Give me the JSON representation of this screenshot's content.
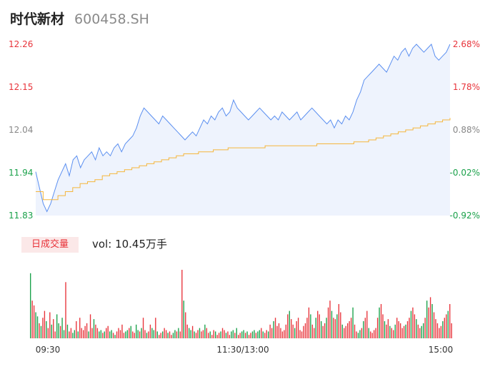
{
  "header": {
    "name": "时代新材",
    "code": "600458.SH"
  },
  "volume": {
    "badge": "日成交量",
    "prefix": "vol:",
    "value": "10.45万手"
  },
  "colors": {
    "up": "#e8333a",
    "down": "#1aa14a",
    "neutral": "#888888",
    "price_line": "#5b8ff0",
    "avg_line": "#f5b63c",
    "area_fill": "#eef3fd"
  },
  "chart_data": [
    {
      "type": "line",
      "title": "",
      "xlabel": "",
      "ylabel": "",
      "ylim": [
        11.83,
        12.26
      ],
      "y_ticks": [
        "12.26",
        "12.15",
        "12.04",
        "11.94",
        "11.83"
      ],
      "y_ticks_right": [
        "2.68%",
        "1.78%",
        "0.88%",
        "-0.02%",
        "-0.92%"
      ],
      "x_ticks": [
        "09:30",
        "11:30/13:00",
        "15:00"
      ],
      "grid": false,
      "series": [
        {
          "values": [
            11.94,
            11.9,
            11.86,
            11.84,
            11.86,
            11.89,
            11.92,
            11.94,
            11.96,
            11.93,
            11.97,
            11.98,
            11.95,
            11.97,
            11.98,
            11.99,
            11.97,
            12.0,
            11.98,
            11.99,
            11.98,
            12.0,
            12.01,
            11.99,
            12.01,
            12.02,
            12.03,
            12.05,
            12.08,
            12.1,
            12.09,
            12.08,
            12.07,
            12.06,
            12.08,
            12.07,
            12.06,
            12.05,
            12.04,
            12.03,
            12.02,
            12.03,
            12.04,
            12.03,
            12.05,
            12.07,
            12.06,
            12.08,
            12.07,
            12.09,
            12.1,
            12.08,
            12.09,
            12.12,
            12.1,
            12.09,
            12.08,
            12.07,
            12.08,
            12.09,
            12.1,
            12.09,
            12.08,
            12.07,
            12.08,
            12.07,
            12.09,
            12.08,
            12.07,
            12.08,
            12.09,
            12.07,
            12.08,
            12.09,
            12.1,
            12.09,
            12.08,
            12.07,
            12.06,
            12.07,
            12.05,
            12.07,
            12.06,
            12.08,
            12.07,
            12.09,
            12.12,
            12.14,
            12.17,
            12.18,
            12.19,
            12.2,
            12.21,
            12.2,
            12.19,
            12.21,
            12.23,
            12.22,
            12.24,
            12.25,
            12.23,
            12.25,
            12.26,
            12.25,
            12.24,
            12.25,
            12.26,
            12.23,
            12.22,
            12.23,
            12.24,
            12.26
          ],
          "color": "#5b8ff0"
        },
        {
          "values": [
            11.89,
            11.87,
            11.87,
            11.88,
            11.89,
            11.9,
            11.91,
            11.915,
            11.92,
            11.93,
            11.935,
            11.94,
            11.945,
            11.95,
            11.955,
            11.96,
            11.965,
            11.97,
            11.975,
            11.98,
            11.985,
            11.985,
            11.99,
            11.99,
            11.995,
            11.995,
            12.0,
            12.0,
            12.0,
            12.0,
            12.0,
            12.005,
            12.005,
            12.005,
            12.005,
            12.005,
            12.005,
            12.005,
            12.01,
            12.01,
            12.01,
            12.01,
            12.01,
            12.015,
            12.015,
            12.02,
            12.025,
            12.03,
            12.035,
            12.04,
            12.045,
            12.05,
            12.055,
            12.06,
            12.065,
            12.07,
            12.075
          ],
          "color": "#f5b63c"
        }
      ]
    },
    {
      "type": "bar",
      "title": "",
      "x_ticks": [
        "09:30",
        "11:30/13:00",
        "15:00"
      ],
      "series": [
        {
          "values": [
            95,
            55,
            48,
            38,
            32,
            22,
            18,
            30,
            40,
            25,
            15,
            38,
            20,
            28,
            10,
            35,
            22,
            18,
            30,
            12,
            82,
            20,
            10,
            15,
            8,
            12,
            25,
            10,
            30,
            15,
            12,
            18,
            22,
            10,
            35,
            15,
            28,
            20,
            15,
            10,
            12,
            8,
            10,
            15,
            18,
            10,
            12,
            8,
            5,
            10,
            15,
            12,
            20,
            8,
            10,
            12,
            15,
            18,
            10,
            8,
            20,
            12,
            10,
            15,
            30,
            12,
            8,
            10,
            20,
            15,
            12,
            30,
            10,
            5,
            8,
            10,
            15,
            12,
            8,
            10,
            5,
            8,
            12,
            10,
            15,
            10,
            100,
            55,
            38,
            20,
            15,
            12,
            18,
            10,
            8,
            12,
            15,
            10,
            12,
            20,
            15,
            8,
            10,
            5,
            12,
            10,
            5,
            8,
            10,
            15,
            12,
            8,
            10,
            5,
            10,
            12,
            8,
            15,
            5,
            8,
            10,
            12,
            8,
            10,
            5,
            8,
            10,
            12,
            8,
            10,
            12,
            15,
            10,
            8,
            12,
            10,
            20,
            15,
            25,
            30,
            18,
            22,
            15,
            10,
            12,
            20,
            35,
            40,
            28,
            20,
            15,
            25,
            30,
            12,
            10,
            18,
            22,
            30,
            45,
            35,
            20,
            15,
            30,
            40,
            35,
            25,
            18,
            22,
            30,
            45,
            55,
            40,
            30,
            28,
            35,
            50,
            38,
            20,
            15,
            18,
            22,
            25,
            30,
            45,
            20,
            10,
            8,
            12,
            15,
            25,
            30,
            40,
            15,
            10,
            8,
            12,
            15,
            30,
            45,
            50,
            35,
            25,
            20,
            28,
            18,
            15,
            12,
            20,
            30,
            25,
            22,
            15,
            18,
            20,
            25,
            30,
            40,
            45,
            35,
            28,
            20,
            15,
            18,
            22,
            30,
            55,
            45,
            60,
            50,
            38,
            28,
            22,
            15,
            18,
            25,
            30,
            35,
            40,
            50,
            22
          ],
          "colors_pattern": "mixed"
        }
      ]
    }
  ]
}
